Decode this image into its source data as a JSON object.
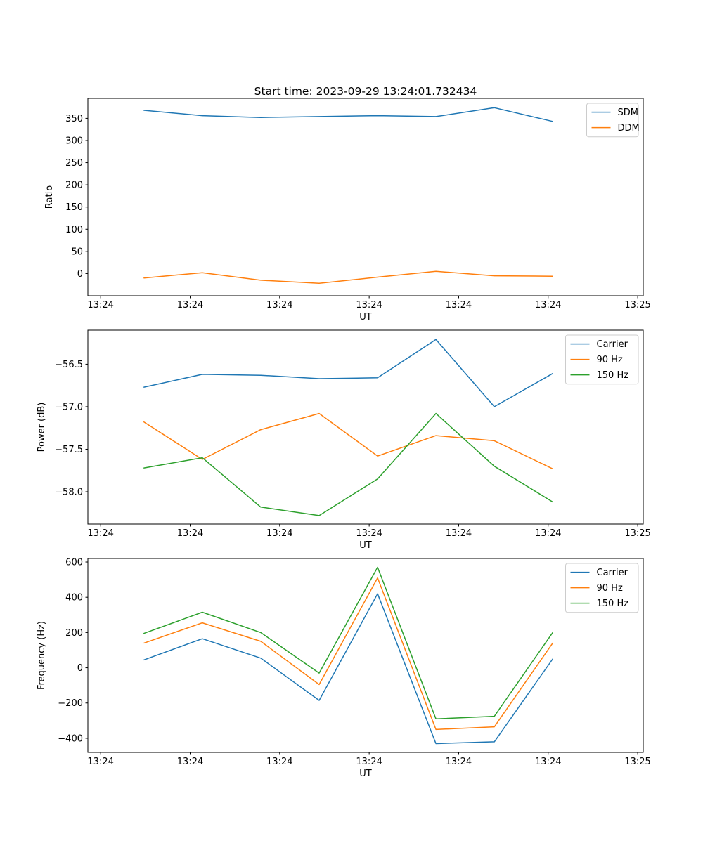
{
  "figure": {
    "background": "#ffffff",
    "axis_color": "#000000",
    "legend_border_color": "#cccccc"
  },
  "chart_data": [
    {
      "type": "line",
      "title": "Start time: 2023-09-29 13:24:01.732434",
      "xlabel": "UT",
      "ylabel": "Ratio",
      "xlim": [
        0,
        100
      ],
      "ylim": [
        -50,
        395
      ],
      "grid": false,
      "legend": {
        "visible": true,
        "position": "upper right"
      },
      "x": [
        10.1,
        20.61,
        31.13,
        41.64,
        52.16,
        62.67,
        73.19,
        83.7
      ],
      "x_ticks": [
        {
          "pos": 2.3,
          "label": "13:24"
        },
        {
          "pos": 18.42,
          "label": "13:24"
        },
        {
          "pos": 34.53,
          "label": "13:24"
        },
        {
          "pos": 50.65,
          "label": "13:24"
        },
        {
          "pos": 66.77,
          "label": "13:24"
        },
        {
          "pos": 82.88,
          "label": "13:24"
        },
        {
          "pos": 99.0,
          "label": "13:25"
        }
      ],
      "y_ticks": [
        {
          "value": 0,
          "label": "0"
        },
        {
          "value": 50,
          "label": "50"
        },
        {
          "value": 100,
          "label": "100"
        },
        {
          "value": 150,
          "label": "150"
        },
        {
          "value": 200,
          "label": "200"
        },
        {
          "value": 250,
          "label": "250"
        },
        {
          "value": 300,
          "label": "300"
        },
        {
          "value": 350,
          "label": "350"
        }
      ],
      "series": [
        {
          "name": "SDM",
          "color": "#1f77b4",
          "values": [
            368,
            356,
            352,
            354,
            356,
            354,
            374,
            343
          ]
        },
        {
          "name": "DDM",
          "color": "#ff7f0e",
          "values": [
            -10,
            2,
            -15,
            -22,
            -8,
            5,
            -5,
            -6
          ]
        }
      ]
    },
    {
      "type": "line",
      "title": "",
      "xlabel": "UT",
      "ylabel": "Power (dB)",
      "xlim": [
        0,
        100
      ],
      "ylim": [
        -58.38,
        -56.1
      ],
      "grid": false,
      "legend": {
        "visible": true,
        "position": "upper right"
      },
      "x": [
        10.1,
        20.61,
        31.13,
        41.64,
        52.16,
        62.67,
        73.19,
        83.7
      ],
      "x_ticks": [
        {
          "pos": 2.3,
          "label": "13:24"
        },
        {
          "pos": 18.42,
          "label": "13:24"
        },
        {
          "pos": 34.53,
          "label": "13:24"
        },
        {
          "pos": 50.65,
          "label": "13:24"
        },
        {
          "pos": 66.77,
          "label": "13:24"
        },
        {
          "pos": 82.88,
          "label": "13:24"
        },
        {
          "pos": 99.0,
          "label": "13:25"
        }
      ],
      "y_ticks": [
        {
          "value": -56.5,
          "label": "−56.5"
        },
        {
          "value": -57.0,
          "label": "−57.0"
        },
        {
          "value": -57.5,
          "label": "−57.5"
        },
        {
          "value": -58.0,
          "label": "−58.0"
        }
      ],
      "series": [
        {
          "name": "Carrier",
          "color": "#1f77b4",
          "values": [
            -56.77,
            -56.62,
            -56.63,
            -56.67,
            -56.66,
            -56.21,
            -57.0,
            -56.61
          ]
        },
        {
          "name": "90 Hz",
          "color": "#ff7f0e",
          "values": [
            -57.18,
            -57.62,
            -57.27,
            -57.08,
            -57.58,
            -57.34,
            -57.4,
            -57.73
          ]
        },
        {
          "name": "150 Hz",
          "color": "#2ca02c",
          "values": [
            -57.72,
            -57.6,
            -58.18,
            -58.28,
            -57.85,
            -57.08,
            -57.7,
            -58.12
          ]
        }
      ]
    },
    {
      "type": "line",
      "title": "",
      "xlabel": "UT",
      "ylabel": "Frequency (Hz)",
      "xlim": [
        0,
        100
      ],
      "ylim": [
        -480,
        620
      ],
      "grid": false,
      "legend": {
        "visible": true,
        "position": "upper right"
      },
      "x": [
        10.1,
        20.61,
        31.13,
        41.64,
        52.16,
        62.67,
        73.19,
        83.7
      ],
      "x_ticks": [
        {
          "pos": 2.3,
          "label": "13:24"
        },
        {
          "pos": 18.42,
          "label": "13:24"
        },
        {
          "pos": 34.53,
          "label": "13:24"
        },
        {
          "pos": 50.65,
          "label": "13:24"
        },
        {
          "pos": 66.77,
          "label": "13:24"
        },
        {
          "pos": 82.88,
          "label": "13:24"
        },
        {
          "pos": 99.0,
          "label": "13:25"
        }
      ],
      "y_ticks": [
        {
          "value": -400,
          "label": "−400"
        },
        {
          "value": -200,
          "label": "−200"
        },
        {
          "value": 0,
          "label": "0"
        },
        {
          "value": 200,
          "label": "200"
        },
        {
          "value": 400,
          "label": "400"
        },
        {
          "value": 600,
          "label": "600"
        }
      ],
      "series": [
        {
          "name": "Carrier",
          "color": "#1f77b4",
          "values": [
            45,
            165,
            55,
            -185,
            420,
            -430,
            -420,
            50
          ]
        },
        {
          "name": "90 Hz",
          "color": "#ff7f0e",
          "values": [
            140,
            255,
            150,
            -95,
            510,
            -350,
            -335,
            140
          ]
        },
        {
          "name": "150 Hz",
          "color": "#2ca02c",
          "values": [
            195,
            315,
            200,
            -30,
            570,
            -290,
            -275,
            200
          ]
        }
      ]
    }
  ]
}
